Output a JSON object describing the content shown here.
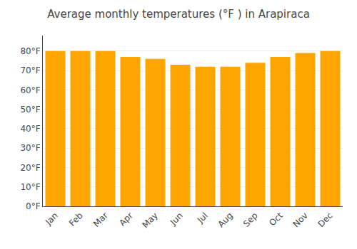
{
  "chart_data": {
    "type": "bar",
    "title": "Average monthly temperatures (°F ) in Arapiraca",
    "categories": [
      "Jan",
      "Feb",
      "Mar",
      "Apr",
      "May",
      "Jun",
      "Jul",
      "Aug",
      "Sep",
      "Oct",
      "Nov",
      "Dec"
    ],
    "values": [
      80,
      80,
      80,
      77,
      76,
      73,
      72,
      72,
      74,
      77,
      79,
      80
    ],
    "color": "#FFA500",
    "ylim": [
      0,
      88
    ],
    "yticks": [
      {
        "value": 0,
        "label": "0°F"
      },
      {
        "value": 10,
        "label": "10°F"
      },
      {
        "value": 20,
        "label": "20°F"
      },
      {
        "value": 30,
        "label": "30°F"
      },
      {
        "value": 40,
        "label": "40°F"
      },
      {
        "value": 50,
        "label": "50°F"
      },
      {
        "value": 60,
        "label": "60°F"
      },
      {
        "value": 70,
        "label": "70°F"
      },
      {
        "value": 80,
        "label": "80°F"
      }
    ],
    "grid": true
  }
}
